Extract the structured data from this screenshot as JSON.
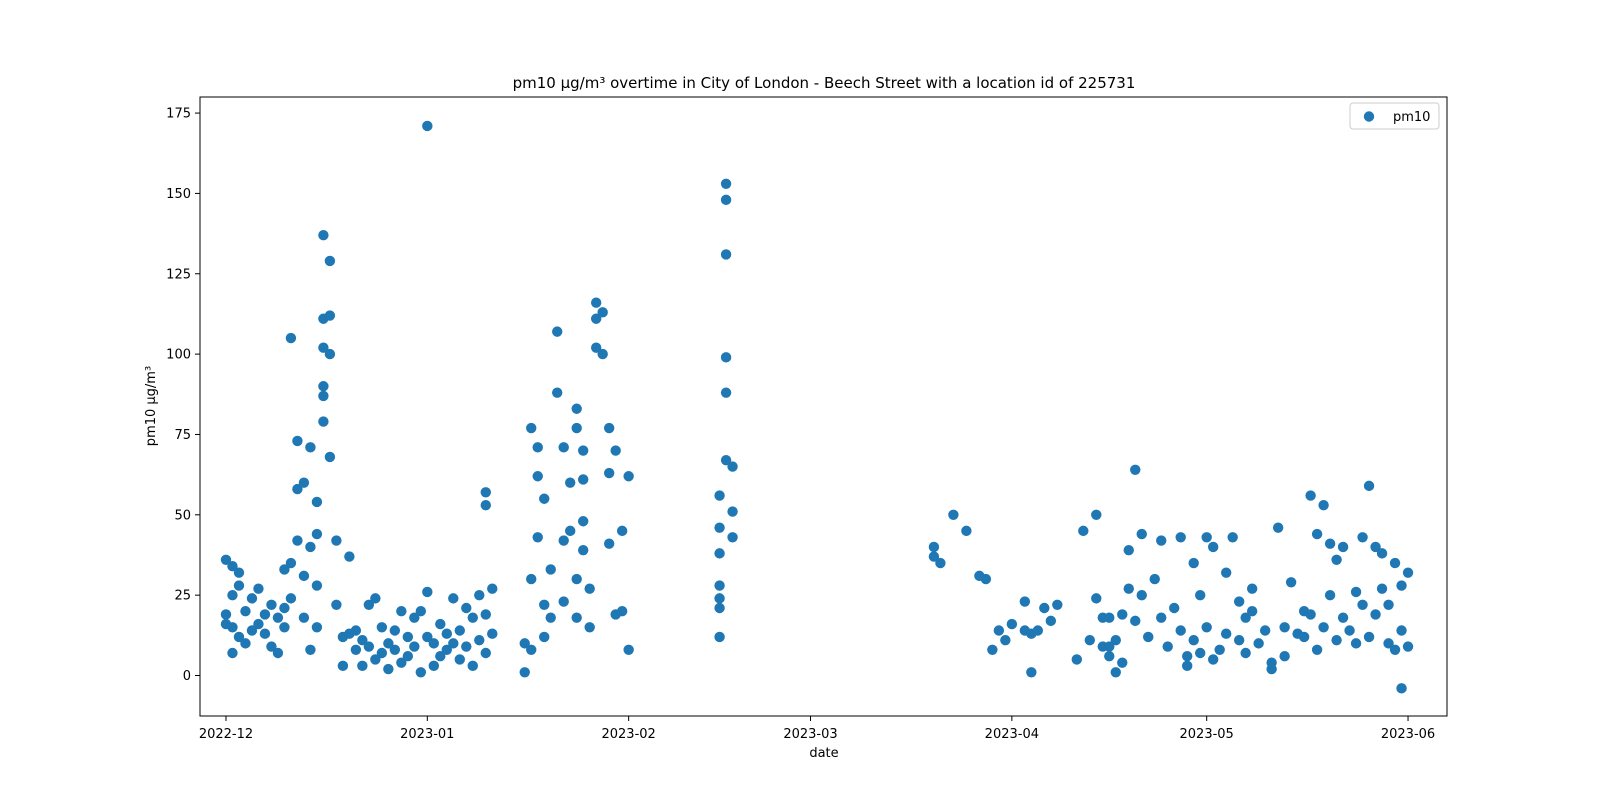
{
  "chart_data": {
    "type": "scatter",
    "title": "pm10 µg/m³ overtime in City of London - Beech Street with a location id of 225731",
    "xlabel": "date",
    "ylabel": "pm10 µg/m³",
    "xlim": [
      "2022-11-27",
      "2023-06-07"
    ],
    "ylim": [
      -12.6,
      180
    ],
    "xticks": [
      "2022-12-01",
      "2023-01-01",
      "2023-02-01",
      "2023-03-01",
      "2023-04-01",
      "2023-05-01",
      "2023-06-01"
    ],
    "xtick_labels": [
      "2022-12",
      "2023-01",
      "2023-02",
      "2023-03",
      "2023-04",
      "2023-05",
      "2023-06"
    ],
    "yticks": [
      0,
      25,
      50,
      75,
      100,
      125,
      150,
      175
    ],
    "grid": false,
    "legend": "top-right",
    "series": [
      {
        "name": "pm10",
        "color": "#1f77b4",
        "x": [
          "2022-12-01",
          "2022-12-01",
          "2022-12-01",
          "2022-12-02",
          "2022-12-02",
          "2022-12-02",
          "2022-12-02",
          "2022-12-03",
          "2022-12-03",
          "2022-12-03",
          "2022-12-04",
          "2022-12-04",
          "2022-12-05",
          "2022-12-05",
          "2022-12-06",
          "2022-12-06",
          "2022-12-07",
          "2022-12-07",
          "2022-12-08",
          "2022-12-08",
          "2022-12-09",
          "2022-12-09",
          "2022-12-10",
          "2022-12-10",
          "2022-12-10",
          "2022-12-11",
          "2022-12-11",
          "2022-12-11",
          "2022-12-12",
          "2022-12-12",
          "2022-12-12",
          "2022-12-13",
          "2022-12-13",
          "2022-12-13",
          "2022-12-14",
          "2022-12-14",
          "2022-12-14",
          "2022-12-15",
          "2022-12-15",
          "2022-12-15",
          "2022-12-15",
          "2022-12-16",
          "2022-12-16",
          "2022-12-16",
          "2022-12-16",
          "2022-12-16",
          "2022-12-16",
          "2022-12-17",
          "2022-12-17",
          "2022-12-17",
          "2022-12-17",
          "2022-12-18",
          "2022-12-18",
          "2022-12-19",
          "2022-12-19",
          "2022-12-20",
          "2022-12-20",
          "2022-12-21",
          "2022-12-21",
          "2022-12-22",
          "2022-12-22",
          "2022-12-23",
          "2022-12-23",
          "2022-12-24",
          "2022-12-24",
          "2022-12-25",
          "2022-12-25",
          "2022-12-26",
          "2022-12-26",
          "2022-12-27",
          "2022-12-27",
          "2022-12-28",
          "2022-12-28",
          "2022-12-29",
          "2022-12-29",
          "2022-12-30",
          "2022-12-30",
          "2022-12-31",
          "2022-12-31",
          "2023-01-01",
          "2023-01-01",
          "2023-01-01",
          "2023-01-02",
          "2023-01-02",
          "2023-01-03",
          "2023-01-03",
          "2023-01-04",
          "2023-01-04",
          "2023-01-05",
          "2023-01-05",
          "2023-01-06",
          "2023-01-06",
          "2023-01-07",
          "2023-01-07",
          "2023-01-08",
          "2023-01-08",
          "2023-01-09",
          "2023-01-09",
          "2023-01-10",
          "2023-01-10",
          "2023-01-10",
          "2023-01-10",
          "2023-01-11",
          "2023-01-11",
          "2023-01-16",
          "2023-01-16",
          "2023-01-17",
          "2023-01-17",
          "2023-01-17",
          "2023-01-18",
          "2023-01-18",
          "2023-01-18",
          "2023-01-19",
          "2023-01-19",
          "2023-01-19",
          "2023-01-20",
          "2023-01-20",
          "2023-01-21",
          "2023-01-21",
          "2023-01-22",
          "2023-01-22",
          "2023-01-22",
          "2023-01-23",
          "2023-01-23",
          "2023-01-24",
          "2023-01-24",
          "2023-01-24",
          "2023-01-24",
          "2023-01-25",
          "2023-01-25",
          "2023-01-25",
          "2023-01-25",
          "2023-01-26",
          "2023-01-26",
          "2023-01-27",
          "2023-01-27",
          "2023-01-27",
          "2023-01-28",
          "2023-01-28",
          "2023-01-29",
          "2023-01-29",
          "2023-01-29",
          "2023-01-30",
          "2023-01-30",
          "2023-01-31",
          "2023-01-31",
          "2023-02-01",
          "2023-02-01",
          "2023-02-15",
          "2023-02-15",
          "2023-02-15",
          "2023-02-15",
          "2023-02-15",
          "2023-02-15",
          "2023-02-15",
          "2023-02-16",
          "2023-02-16",
          "2023-02-16",
          "2023-02-16",
          "2023-02-16",
          "2023-02-16",
          "2023-02-17",
          "2023-02-17",
          "2023-02-17",
          "2023-03-20",
          "2023-03-20",
          "2023-03-21",
          "2023-03-23",
          "2023-03-25",
          "2023-03-27",
          "2023-03-28",
          "2023-03-29",
          "2023-03-30",
          "2023-03-31",
          "2023-04-01",
          "2023-04-03",
          "2023-04-03",
          "2023-04-04",
          "2023-04-04",
          "2023-04-05",
          "2023-04-06",
          "2023-04-07",
          "2023-04-08",
          "2023-04-11",
          "2023-04-12",
          "2023-04-13",
          "2023-04-14",
          "2023-04-14",
          "2023-04-15",
          "2023-04-15",
          "2023-04-16",
          "2023-04-16",
          "2023-04-16",
          "2023-04-17",
          "2023-04-17",
          "2023-04-18",
          "2023-04-18",
          "2023-04-19",
          "2023-04-19",
          "2023-04-20",
          "2023-04-20",
          "2023-04-21",
          "2023-04-21",
          "2023-04-22",
          "2023-04-23",
          "2023-04-24",
          "2023-04-24",
          "2023-04-25",
          "2023-04-26",
          "2023-04-27",
          "2023-04-27",
          "2023-04-28",
          "2023-04-28",
          "2023-04-29",
          "2023-04-29",
          "2023-04-30",
          "2023-04-30",
          "2023-05-01",
          "2023-05-01",
          "2023-05-02",
          "2023-05-02",
          "2023-05-03",
          "2023-05-04",
          "2023-05-04",
          "2023-05-05",
          "2023-05-06",
          "2023-05-06",
          "2023-05-07",
          "2023-05-07",
          "2023-05-08",
          "2023-05-08",
          "2023-05-09",
          "2023-05-10",
          "2023-05-11",
          "2023-05-11",
          "2023-05-12",
          "2023-05-13",
          "2023-05-13",
          "2023-05-14",
          "2023-05-15",
          "2023-05-16",
          "2023-05-16",
          "2023-05-17",
          "2023-05-17",
          "2023-05-18",
          "2023-05-18",
          "2023-05-19",
          "2023-05-19",
          "2023-05-20",
          "2023-05-20",
          "2023-05-21",
          "2023-05-21",
          "2023-05-22",
          "2023-05-22",
          "2023-05-23",
          "2023-05-24",
          "2023-05-24",
          "2023-05-25",
          "2023-05-25",
          "2023-05-26",
          "2023-05-26",
          "2023-05-27",
          "2023-05-27",
          "2023-05-28",
          "2023-05-28",
          "2023-05-29",
          "2023-05-29",
          "2023-05-30",
          "2023-05-30",
          "2023-05-31",
          "2023-05-31",
          "2023-05-31",
          "2023-06-01",
          "2023-06-01"
        ],
        "y": [
          19,
          36,
          16,
          34,
          25,
          15,
          7,
          32,
          12,
          28,
          20,
          10,
          24,
          14,
          27,
          16,
          19,
          13,
          22,
          9,
          18,
          7,
          33,
          15,
          21,
          105,
          35,
          24,
          42,
          73,
          58,
          60,
          31,
          18,
          71,
          40,
          8,
          54,
          44,
          28,
          15,
          102,
          111,
          79,
          87,
          90,
          137,
          129,
          112,
          100,
          68,
          42,
          22,
          12,
          3,
          37,
          13,
          14,
          8,
          11,
          3,
          22,
          9,
          24,
          5,
          15,
          7,
          10,
          2,
          8,
          14,
          20,
          4,
          12,
          6,
          18,
          9,
          20,
          1,
          171,
          26,
          12,
          10,
          3,
          16,
          6,
          8,
          13,
          24,
          10,
          14,
          5,
          21,
          9,
          18,
          3,
          25,
          11,
          19,
          7,
          57,
          53,
          27,
          13,
          10,
          1,
          8,
          30,
          77,
          71,
          62,
          43,
          22,
          12,
          55,
          33,
          18,
          107,
          88,
          71,
          42,
          23,
          60,
          45,
          30,
          18,
          83,
          77,
          61,
          39,
          70,
          48,
          27,
          15,
          111,
          102,
          116,
          113,
          100,
          63,
          77,
          41,
          19,
          70,
          45,
          20,
          8,
          62,
          38,
          21,
          12,
          56,
          28,
          46,
          24,
          148,
          153,
          131,
          99,
          88,
          67,
          65,
          51,
          43,
          37,
          40,
          35,
          50,
          45,
          31,
          30,
          8,
          14,
          11,
          16,
          23,
          14,
          1,
          13,
          14,
          21,
          17,
          22,
          5,
          45,
          11,
          50,
          24,
          18,
          9,
          18,
          9,
          6,
          1,
          11,
          4,
          19,
          27,
          39,
          17,
          64,
          25,
          44,
          12,
          30,
          18,
          42,
          9,
          21,
          14,
          43,
          6,
          3,
          35,
          11,
          25,
          7,
          43,
          15,
          5,
          40,
          8,
          32,
          13,
          43,
          23,
          11,
          18,
          7,
          20,
          27,
          10,
          14,
          4,
          2,
          46,
          15,
          6,
          29,
          13,
          20,
          12,
          56,
          19,
          8,
          44,
          53,
          15,
          41,
          25,
          11,
          36,
          18,
          40,
          14,
          26,
          10,
          43,
          22,
          59,
          12,
          40,
          19,
          38,
          27,
          10,
          22,
          35,
          8,
          28,
          14,
          -4,
          32,
          9
        ]
      }
    ]
  }
}
